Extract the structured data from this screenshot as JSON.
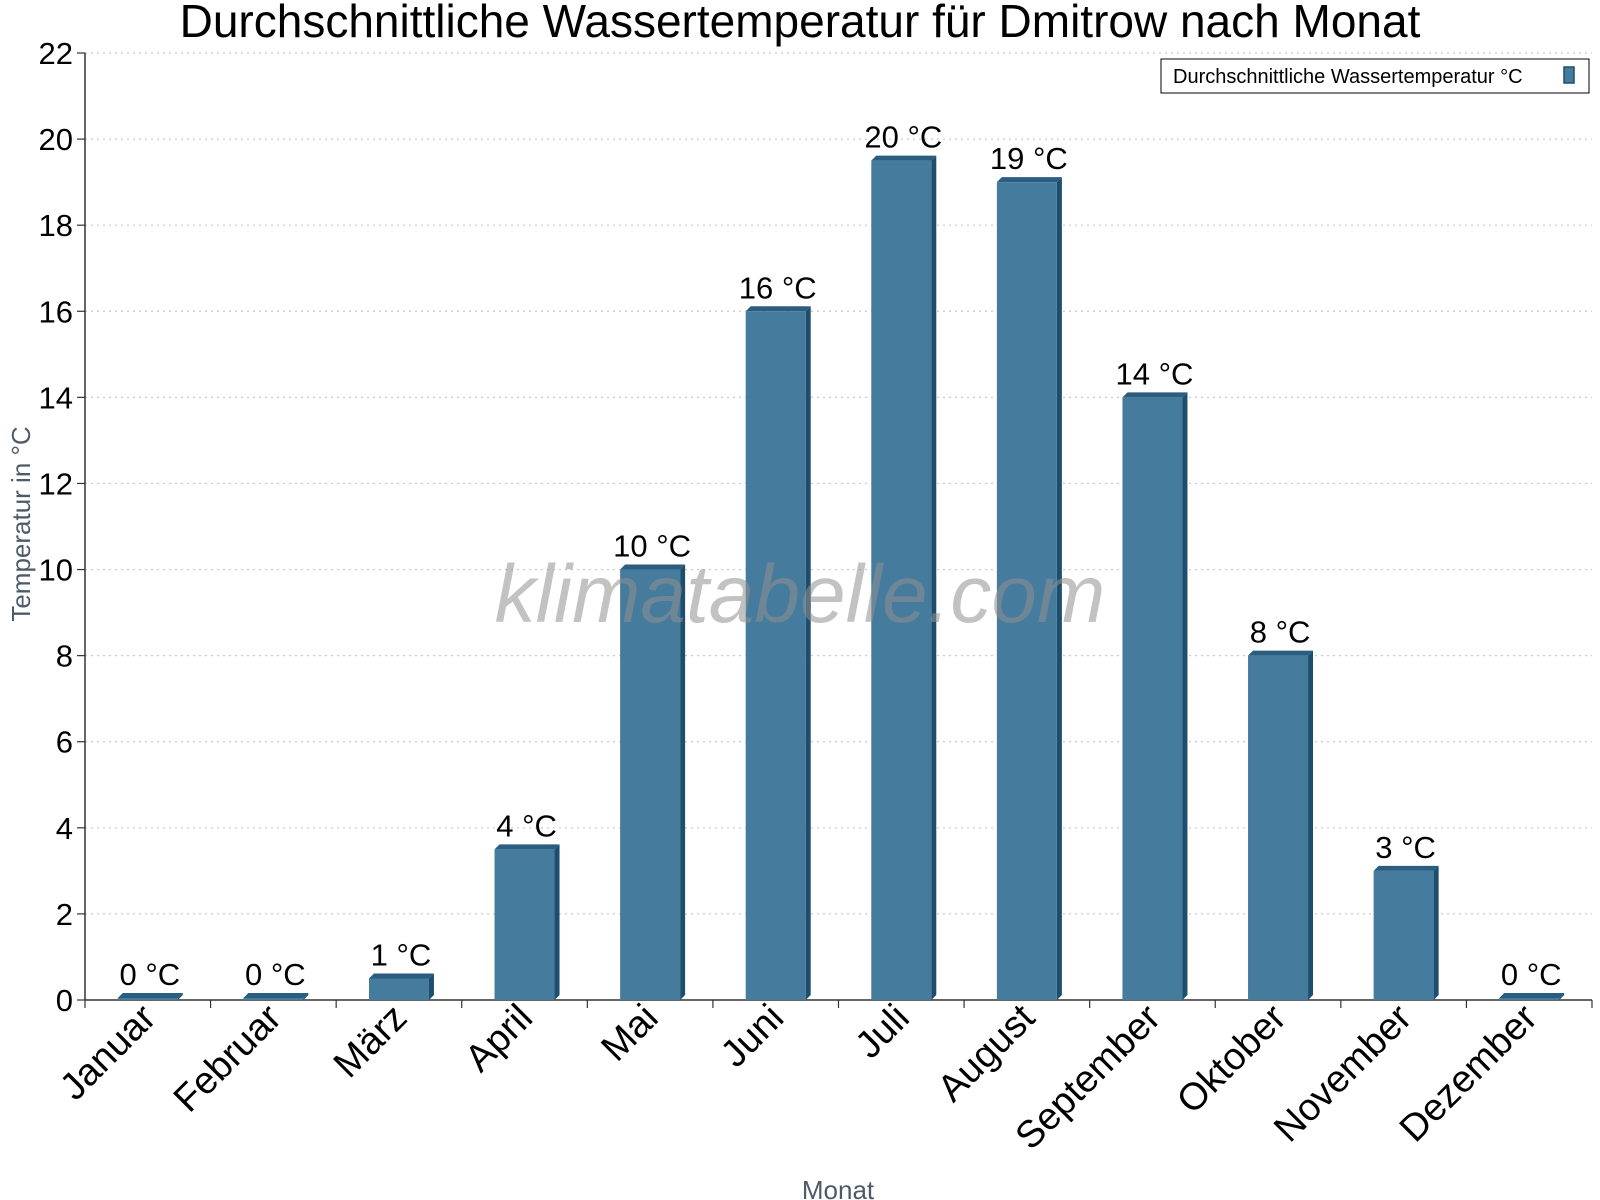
{
  "chart_data": {
    "type": "bar",
    "title": "Durchschnittliche Wassertemperatur für Dmitrow nach Monat",
    "xlabel": "Monat",
    "ylabel": "Temperatur in °C",
    "categories": [
      "Januar",
      "Februar",
      "März",
      "April",
      "Mai",
      "Juni",
      "Juli",
      "August",
      "September",
      "Oktober",
      "November",
      "Dezember"
    ],
    "series": [
      {
        "name": "Durchschnittliche Wassertemperatur °C",
        "values": [
          0,
          0,
          0.5,
          3.5,
          10,
          16,
          19.5,
          19,
          14,
          8,
          3,
          0
        ]
      }
    ],
    "data_labels": [
      "0 °C",
      "0 °C",
      "1 °C",
      "4 °C",
      "10 °C",
      "16 °C",
      "20 °C",
      "19 °C",
      "14 °C",
      "8 °C",
      "3 °C",
      "0 °C"
    ],
    "ylim": [
      0,
      22
    ],
    "yticks": [
      0,
      2,
      4,
      6,
      8,
      10,
      12,
      14,
      16,
      18,
      20,
      22
    ],
    "grid": true,
    "legend_position": "top-right",
    "watermark": "klimatabelle.com",
    "colors": {
      "bar": "#457b9d",
      "bar_side": "#1d4e6e",
      "bar_top": "#2a5d80",
      "grid": "#c8c8c8",
      "axis": "#333333"
    }
  }
}
